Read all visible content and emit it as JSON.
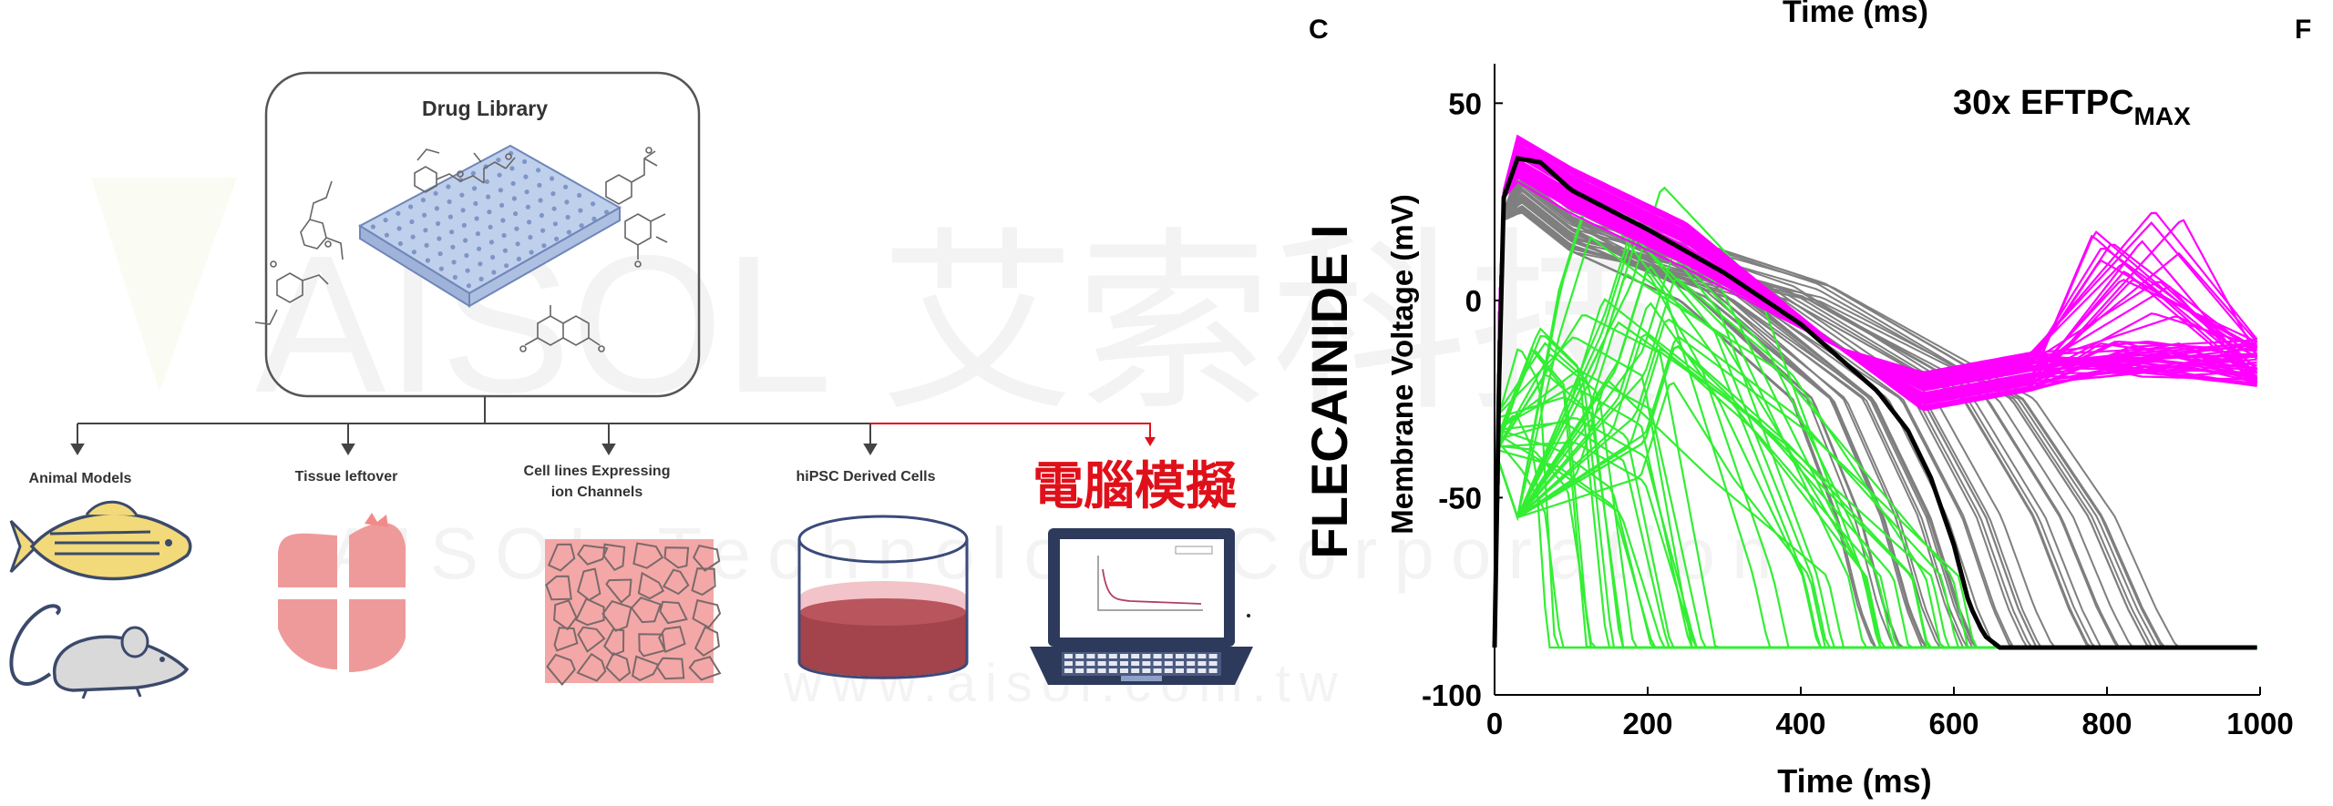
{
  "diagram": {
    "library_title": "Drug Library",
    "branches": [
      {
        "label": "Animal Models"
      },
      {
        "label": "Tissue leftover"
      },
      {
        "label_line1": "Cell lines Expressing",
        "label_line2": "ion Channels"
      },
      {
        "label": "hiPSC Derived Cells"
      },
      {
        "label": "電腦模擬"
      }
    ],
    "watermark": {
      "line1": "AISOL 艾索科技",
      "line2": "AISOL Technology Corporation",
      "line3": "www.aisol.com.tw"
    },
    "colors": {
      "highlight": "#e0101a",
      "fish": "#f2d97a",
      "tissue": "#ef9a9a",
      "cells": "#f4a7a7"
    }
  },
  "chart_data": {
    "type": "line",
    "panel_labels": [
      "C",
      "F"
    ],
    "top_cut_label": "Time (ms)",
    "row_label": "FLECAINIDE I",
    "annotation": {
      "text": "30x EFTPC",
      "subscript": "MAX"
    },
    "xlabel": "Time (ms)",
    "ylabel": "Membrane Voltage (mV)",
    "xlim": [
      0,
      1000
    ],
    "ylim": [
      -100,
      60
    ],
    "xticks": [
      0,
      200,
      400,
      600,
      800,
      1000
    ],
    "yticks": [
      -100,
      -50,
      0,
      50
    ],
    "colors": {
      "magenta": "#ff00ff",
      "gray": "#7f7f7f",
      "green": "#33ee33",
      "black": "#000000"
    },
    "series": [
      {
        "x": [
          0,
          10,
          30,
          60,
          100,
          200,
          300,
          400,
          500,
          540,
          570,
          600,
          620,
          640,
          660,
          700,
          800,
          900,
          1000
        ],
        "y": [
          -88,
          25,
          36,
          35,
          28,
          18,
          7,
          -6,
          -23,
          -33,
          -45,
          -62,
          -77,
          -85,
          -88,
          -88,
          -88,
          -88,
          -88
        ]
      }
    ]
  }
}
